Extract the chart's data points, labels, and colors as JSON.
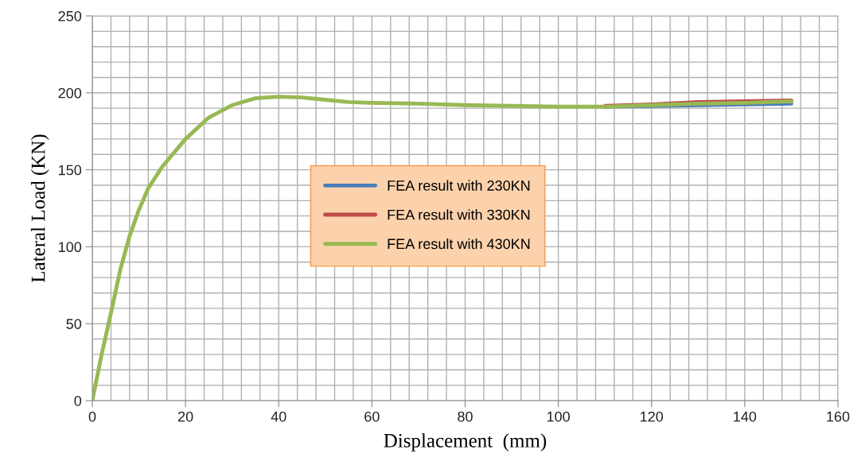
{
  "chart_data": {
    "type": "line",
    "xlabel": "Displacement  (mm)",
    "ylabel": "Lateral Load (KN)",
    "xlim": [
      0,
      160
    ],
    "ylim": [
      0,
      250
    ],
    "xticks": [
      0,
      {
        "value": 4,
        "label": null
      },
      {
        "value": 8,
        "label": null
      },
      {
        "value": 12,
        "label": null
      },
      {
        "value": 16,
        "label": null
      },
      20,
      {
        "value": 24,
        "label": null
      },
      {
        "value": 28,
        "label": null
      },
      {
        "value": 32,
        "label": null
      },
      {
        "value": 36,
        "label": null
      },
      40,
      {
        "value": 44,
        "label": null
      },
      {
        "value": 48,
        "label": null
      },
      {
        "value": 52,
        "label": null
      },
      {
        "value": 56,
        "label": null
      },
      60,
      {
        "value": 64,
        "label": null
      },
      {
        "value": 68,
        "label": null
      },
      {
        "value": 72,
        "label": null
      },
      {
        "value": 76,
        "label": null
      },
      80,
      {
        "value": 84,
        "label": null
      },
      {
        "value": 88,
        "label": null
      },
      {
        "value": 92,
        "label": null
      },
      {
        "value": 96,
        "label": null
      },
      100,
      {
        "value": 104,
        "label": null
      },
      {
        "value": 108,
        "label": null
      },
      {
        "value": 112,
        "label": null
      },
      {
        "value": 116,
        "label": null
      },
      120,
      {
        "value": 124,
        "label": null
      },
      {
        "value": 128,
        "label": null
      },
      {
        "value": 132,
        "label": null
      },
      {
        "value": 136,
        "label": null
      },
      140,
      {
        "value": 144,
        "label": null
      },
      {
        "value": 148,
        "label": null
      },
      {
        "value": 152,
        "label": null
      },
      {
        "value": 156,
        "label": null
      },
      160
    ],
    "yticks": [
      0,
      {
        "value": 10,
        "label": null
      },
      {
        "value": 20,
        "label": null
      },
      {
        "value": 30,
        "label": null
      },
      {
        "value": 40,
        "label": null
      },
      50,
      {
        "value": 60,
        "label": null
      },
      {
        "value": 70,
        "label": null
      },
      {
        "value": 80,
        "label": null
      },
      {
        "value": 90,
        "label": null
      },
      100,
      {
        "value": 110,
        "label": null
      },
      {
        "value": 120,
        "label": null
      },
      {
        "value": 130,
        "label": null
      },
      {
        "value": 140,
        "label": null
      },
      150,
      {
        "value": 160,
        "label": null
      },
      {
        "value": 170,
        "label": null
      },
      {
        "value": 180,
        "label": null
      },
      {
        "value": 190,
        "label": null
      },
      200,
      {
        "value": 210,
        "label": null
      },
      {
        "value": 220,
        "label": null
      },
      {
        "value": 230,
        "label": null
      },
      {
        "value": 240,
        "label": null
      },
      250
    ],
    "grid": true,
    "legend": "center",
    "marker": "none",
    "line_style": "solid",
    "x": [
      0,
      2,
      4,
      6,
      8,
      10,
      12,
      15,
      20,
      25,
      30,
      35,
      40,
      45,
      50,
      55,
      60,
      70,
      80,
      90,
      100,
      110,
      120,
      130,
      140,
      150
    ],
    "series": [
      {
        "name": "FEA result with 230KN",
        "color": "#4a7ebb",
        "values": [
          null,
          null,
          null,
          null,
          null,
          null,
          null,
          null,
          null,
          null,
          null,
          null,
          null,
          null,
          null,
          null,
          null,
          null,
          null,
          null,
          null,
          191,
          191.5,
          192,
          192.5,
          193
        ]
      },
      {
        "name": "FEA result with 330KN",
        "color": "#be4b48",
        "values": [
          null,
          null,
          null,
          null,
          null,
          null,
          null,
          null,
          null,
          null,
          null,
          null,
          null,
          null,
          null,
          null,
          null,
          null,
          null,
          null,
          null,
          191.5,
          192.5,
          194,
          194.5,
          195
        ]
      },
      {
        "name": "FEA result with 430KN",
        "color": "#98b954",
        "values": [
          0,
          30,
          57,
          85,
          107,
          124,
          138,
          152,
          170,
          184,
          192,
          196.5,
          197.5,
          197,
          195.5,
          194,
          193.5,
          193,
          192,
          191.5,
          191,
          191,
          192,
          193,
          193.5,
          194.5
        ]
      }
    ]
  }
}
